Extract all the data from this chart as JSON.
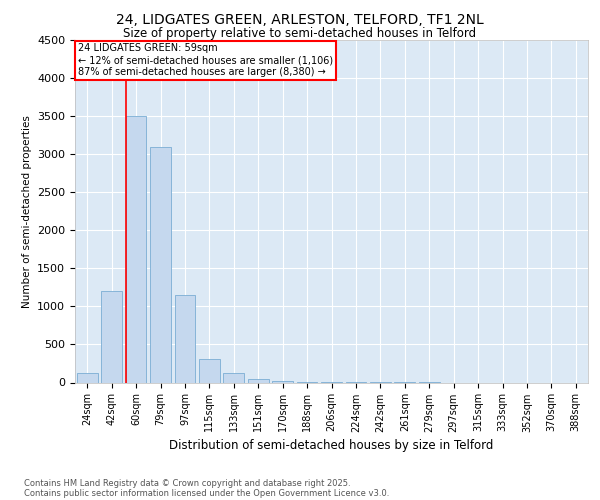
{
  "title_line1": "24, LIDGATES GREEN, ARLESTON, TELFORD, TF1 2NL",
  "title_line2": "Size of property relative to semi-detached houses in Telford",
  "xlabel": "Distribution of semi-detached houses by size in Telford",
  "ylabel": "Number of semi-detached properties",
  "bins": [
    "24sqm",
    "42sqm",
    "60sqm",
    "79sqm",
    "97sqm",
    "115sqm",
    "133sqm",
    "151sqm",
    "170sqm",
    "188sqm",
    "206sqm",
    "224sqm",
    "242sqm",
    "261sqm",
    "279sqm",
    "297sqm",
    "315sqm",
    "333sqm",
    "352sqm",
    "370sqm",
    "388sqm"
  ],
  "values": [
    120,
    1200,
    3500,
    3100,
    1150,
    310,
    120,
    50,
    20,
    10,
    5,
    3,
    2,
    1,
    1,
    0,
    0,
    0,
    0,
    0,
    0
  ],
  "bar_color": "#c5d8ee",
  "bar_edge_color": "#7aadd4",
  "red_line_bin_index": 2,
  "annotation_title": "24 LIDGATES GREEN: 59sqm",
  "annotation_line2": "← 12% of semi-detached houses are smaller (1,106)",
  "annotation_line3": "87% of semi-detached houses are larger (8,380) →",
  "ylim": [
    0,
    4500
  ],
  "yticks": [
    0,
    500,
    1000,
    1500,
    2000,
    2500,
    3000,
    3500,
    4000,
    4500
  ],
  "footer_line1": "Contains HM Land Registry data © Crown copyright and database right 2025.",
  "footer_line2": "Contains public sector information licensed under the Open Government Licence v3.0.",
  "bg_color": "#ffffff",
  "plot_bg_color": "#dce9f5"
}
